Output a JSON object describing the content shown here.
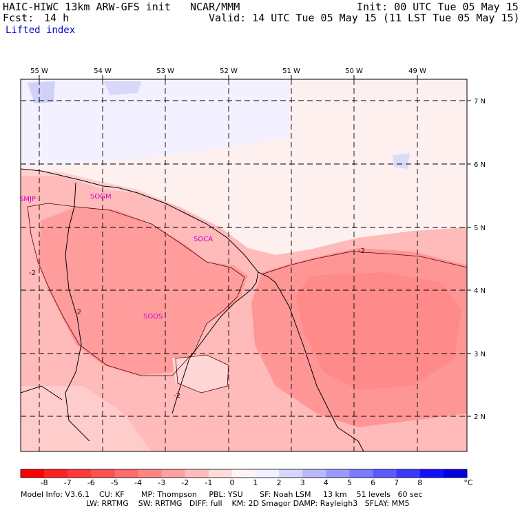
{
  "header": {
    "model": "HAIC-HIWC 13km ARW-GFS init",
    "org": "NCAR/MMM",
    "fcst_label": "Fcst:",
    "fcst_value": "14 h",
    "field": "Lifted index",
    "init": "Init: 00 UTC Tue 05 May 15",
    "valid": "Valid: 14 UTC Tue 05 May 15 (11 LST Tue 05 May 15)"
  },
  "map": {
    "lon_labels": [
      "55 W",
      "54 W",
      "53 W",
      "52 W",
      "51 W",
      "50 W",
      "49 W"
    ],
    "lat_labels": [
      "7 N",
      "6 N",
      "5 N",
      "4 N",
      "3 N",
      "2 N"
    ],
    "stations": [
      "SMJP",
      "SOGM",
      "SOCA",
      "SOOS"
    ],
    "contour_labels": [
      "-2",
      "-2",
      "-2",
      "-2"
    ]
  },
  "colorbar": {
    "ticks": [
      "-8",
      "-7",
      "-6",
      "-5",
      "-4",
      "-3",
      "-2",
      "-1",
      "0",
      "1",
      "2",
      "3",
      "4",
      "5",
      "6",
      "7",
      "8"
    ],
    "unit": "°C",
    "colors": [
      "#ff0000",
      "#ff2020",
      "#ff3838",
      "#ff5050",
      "#ff6a6a",
      "#ff8484",
      "#ffa0a0",
      "#ffbcbc",
      "#ffdada",
      "#fff4f4",
      "#f0f0ff",
      "#d6d6ff",
      "#b8b8ff",
      "#9a9aff",
      "#7a7aff",
      "#5a5aff",
      "#3838ff",
      "#1010ff",
      "#0000e0"
    ]
  },
  "footer": {
    "line1": "Model Info: V3.6.1    CU: KF       MP: Thompson     PBL: YSU       SF: Noah LSM     13 km    51 levels   60 sec",
    "line2": "LW: RRTMG    SW: RRTMG   DIFF: full    KM: 2D Smagor DAMP: Rayleigh3   SFLAY: MM5"
  }
}
